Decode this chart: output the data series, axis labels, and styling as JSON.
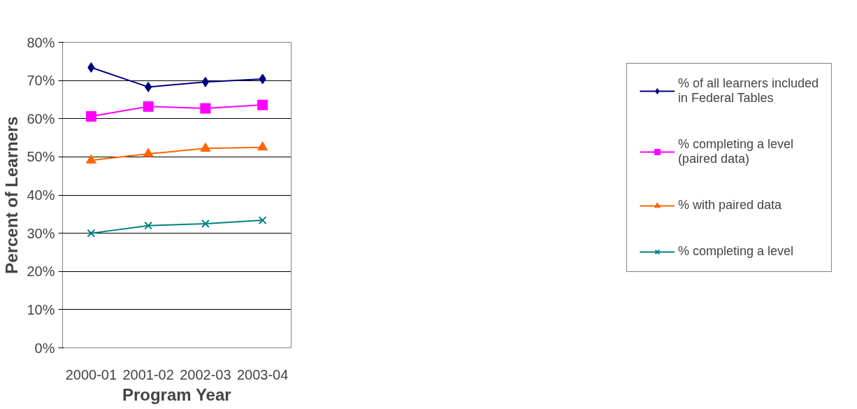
{
  "chart_data": {
    "type": "line",
    "xlabel": "Program Year",
    "ylabel": "Percent of Learners",
    "categories": [
      "2000-01",
      "2001-02",
      "2002-03",
      "2003-04"
    ],
    "series": [
      {
        "name": "% of all learners included\nin Federal Tables",
        "color": "#000080",
        "marker": "diamond",
        "values": [
          73.4,
          68.3,
          69.6,
          70.4
        ]
      },
      {
        "name": "% completing a level\n(paired data)",
        "color": "#ff00ff",
        "marker": "square",
        "values": [
          60.6,
          63.2,
          62.7,
          63.6
        ]
      },
      {
        "name": "% with paired data",
        "color": "#ff6600",
        "marker": "triangle",
        "values": [
          49.1,
          50.8,
          52.2,
          52.5
        ]
      },
      {
        "name": "% completing a level",
        "color": "#008080",
        "marker": "cross",
        "values": [
          30.0,
          32.0,
          32.5,
          33.4
        ]
      }
    ],
    "ylim": [
      0,
      80
    ],
    "yticks": [
      {
        "value": 0,
        "label": "0%"
      },
      {
        "value": 10,
        "label": "10%"
      },
      {
        "value": 20,
        "label": "20%"
      },
      {
        "value": 30,
        "label": "30%"
      },
      {
        "value": 40,
        "label": "40%"
      },
      {
        "value": 50,
        "label": "50%"
      },
      {
        "value": 60,
        "label": "60%"
      },
      {
        "value": 70,
        "label": "70%"
      },
      {
        "value": 80,
        "label": "80%"
      }
    ],
    "grid": "y",
    "legend": "right",
    "line_style": "solid"
  }
}
